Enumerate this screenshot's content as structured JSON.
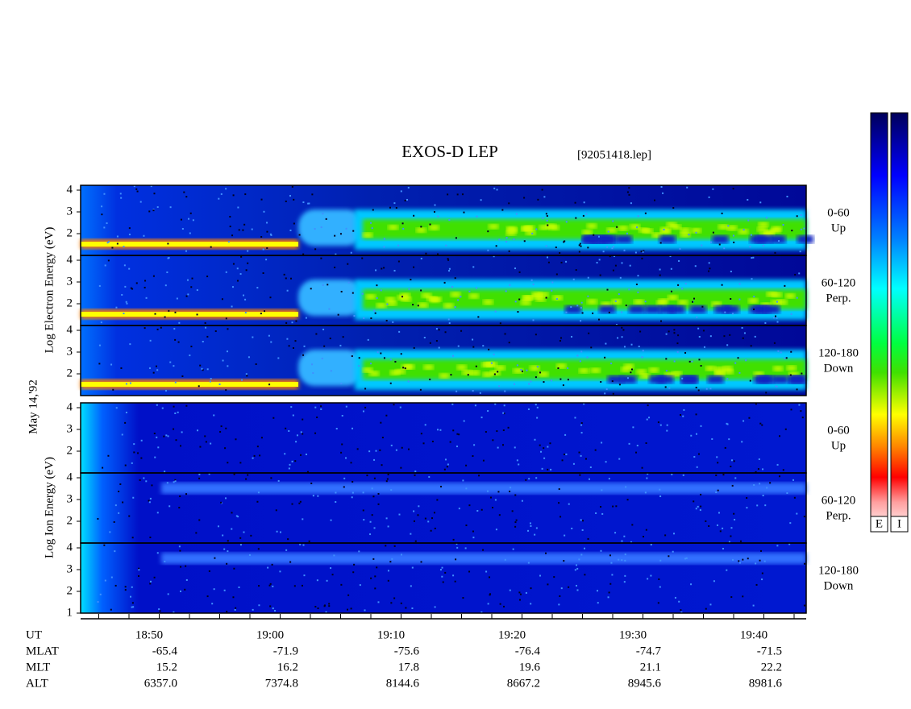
{
  "title": "EXOS-D LEP",
  "file": "[92051418.lep]",
  "date": "May 14,'92",
  "groups": [
    {
      "axis_label": "Log   Electron   Energy (eV)",
      "panels": [
        {
          "yticks": [
            2,
            3,
            4
          ],
          "angle": "0-60",
          "direction": "Up"
        },
        {
          "yticks": [
            2,
            3,
            4
          ],
          "angle": "60-120",
          "direction": "Perp."
        },
        {
          "yticks": [
            2,
            3,
            4
          ],
          "angle": "120-180",
          "direction": "Down"
        }
      ]
    },
    {
      "axis_label": "Log   Ion   Energy (eV)",
      "panels": [
        {
          "yticks": [
            2,
            3,
            4
          ],
          "angle": "0-60",
          "direction": "Up"
        },
        {
          "yticks": [
            2,
            3,
            4
          ],
          "angle": "60-120",
          "direction": "Perp."
        },
        {
          "yticks": [
            1,
            2,
            3,
            4
          ],
          "angle": "120-180",
          "direction": "Down"
        }
      ]
    }
  ],
  "colorbars": [
    "E",
    "I"
  ],
  "ephemeris": [
    {
      "label": "UT",
      "values": [
        "18:50",
        "19:00",
        "19:10",
        "19:20",
        "19:30",
        "19:40"
      ]
    },
    {
      "label": "MLAT",
      "values": [
        "-65.4",
        "-71.9",
        "-75.6",
        "-76.4",
        "-74.7",
        "-71.5"
      ]
    },
    {
      "label": "MLT",
      "values": [
        "15.2",
        "16.2",
        "17.8",
        "19.6",
        "21.1",
        "22.2"
      ]
    },
    {
      "label": "ALT",
      "values": [
        "6357.0",
        "7374.8",
        "8144.6",
        "8667.2",
        "8945.6",
        "8981.6"
      ]
    }
  ]
}
